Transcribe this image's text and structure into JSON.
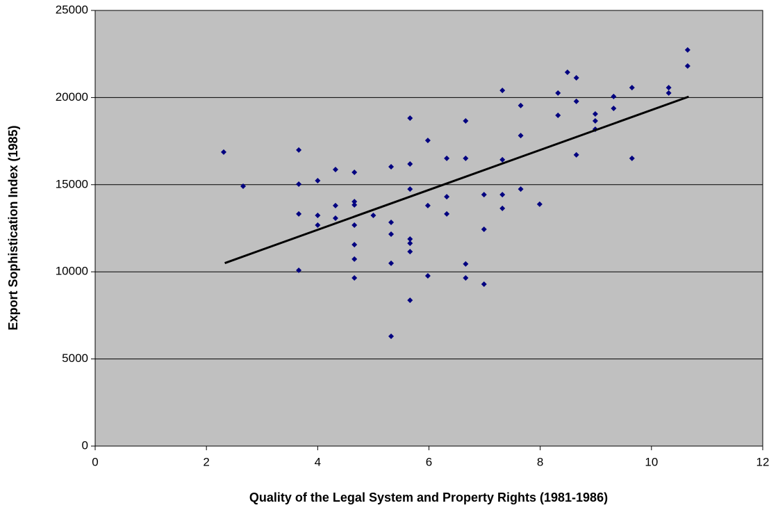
{
  "chart_data": {
    "type": "scatter",
    "x_label": "Quality of the Legal System and Property Rights (1981-1986)",
    "y_label": "Export Sophistication Index (1985)",
    "xlim": [
      0,
      12
    ],
    "xticks": [
      0,
      2,
      4,
      6,
      8,
      10,
      12
    ],
    "ylim": [
      0,
      25000
    ],
    "yticks": [
      0,
      5000,
      10000,
      15000,
      20000,
      25000
    ],
    "grid": true,
    "series": [
      {
        "color": "#000080",
        "x": [
          2.31,
          2.66,
          3.66,
          3.66,
          3.66,
          3.66,
          4.0,
          4.0,
          4.0,
          4.32,
          4.32,
          4.32,
          4.66,
          4.66,
          4.66,
          4.66,
          4.66,
          4.66,
          4.66,
          5.0,
          5.32,
          5.32,
          5.32,
          5.32,
          5.32,
          5.66,
          5.66,
          5.66,
          5.66,
          5.66,
          5.66,
          5.66,
          5.98,
          5.98,
          5.98,
          6.32,
          6.32,
          6.32,
          6.66,
          6.66,
          6.66,
          6.66,
          6.99,
          6.99,
          6.99,
          7.32,
          7.32,
          7.32,
          7.32,
          7.65,
          7.65,
          7.65,
          7.99,
          8.32,
          8.32,
          8.49,
          8.65,
          8.65,
          8.65,
          8.99,
          8.99,
          8.99,
          9.32,
          9.32,
          9.65,
          9.65,
          10.31,
          10.31,
          10.65,
          10.65
        ],
        "values": [
          16870,
          14910,
          16990,
          15030,
          13320,
          10090,
          15230,
          13240,
          12680,
          15870,
          13800,
          13080,
          15710,
          14030,
          13840,
          12680,
          11560,
          10730,
          9650,
          13240,
          16030,
          12840,
          12160,
          10490,
          6300,
          18820,
          16190,
          14750,
          11880,
          11640,
          11160,
          8370,
          17540,
          13800,
          9770,
          16510,
          14310,
          13320,
          18660,
          16510,
          10450,
          9650,
          14430,
          12440,
          9290,
          20410,
          16430,
          14430,
          13640,
          19540,
          17820,
          14750,
          13880,
          20260,
          18980,
          21450,
          21130,
          19780,
          16710,
          19060,
          18660,
          18180,
          20060,
          19380,
          20570,
          16510,
          20570,
          20260,
          22730,
          21810
        ]
      }
    ],
    "trendline": {
      "color": "#000000",
      "x": [
        2.33,
        10.67
      ],
      "values": [
        10500,
        20050
      ]
    }
  }
}
